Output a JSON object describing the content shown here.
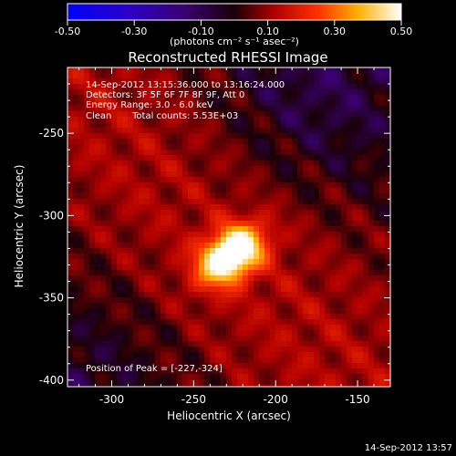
{
  "colorbar": {
    "tick_labels": [
      "-0.50",
      "-0.30",
      "-0.10",
      "0.10",
      "0.30",
      "0.50"
    ],
    "units_label": "(photons cm⁻² s⁻¹ asec⁻²)",
    "range": [
      -0.5,
      0.5
    ]
  },
  "plot": {
    "title": "Reconstructed RHESSI Image",
    "xlabel": "Heliocentric X (arcsec)",
    "ylabel": "Heliocentric Y (arcsec)",
    "x_tick_labels": [
      "-300",
      "-250",
      "-200",
      "-150"
    ],
    "x_ticks": [
      -300,
      -250,
      -200,
      -150
    ],
    "y_tick_labels": [
      "-250",
      "-300",
      "-350",
      "-400"
    ],
    "y_ticks": [
      -250,
      -300,
      -350,
      -400
    ],
    "xlim": [
      -327,
      -130
    ],
    "ylim": [
      -404,
      -210
    ]
  },
  "annotations": {
    "time_range": "14-Sep-2012 13:15:36.000 to 13:16:24.000",
    "detectors": "Detectors: 3F 5F 6F 7F 8F 9F, Att 0",
    "energy": "Energy Range: 3.0 - 6.0 keV",
    "method": "Clean",
    "total_counts": "Total counts: 5.53E+03",
    "peak": "Position of Peak = [-227,-324]"
  },
  "footer": {
    "timestamp": "14-Sep-2012 13:57"
  },
  "image_data": {
    "peak_position": [
      -227,
      -324
    ],
    "colormap": "blue-purple-red-yellow-white"
  }
}
